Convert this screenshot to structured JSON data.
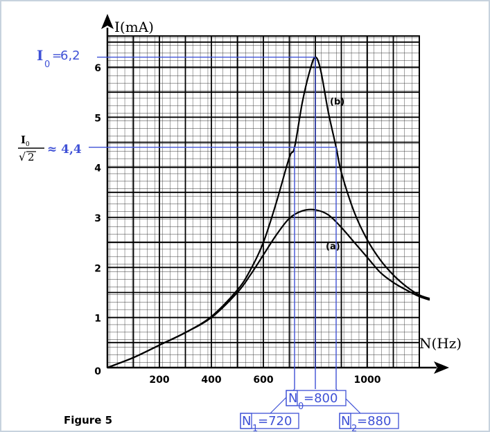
{
  "chart_data": {
    "type": "line",
    "title": "",
    "caption": "Figure 5",
    "xlabel": "N(Hz)",
    "ylabel": "I(mA)",
    "xlim": [
      0,
      1240
    ],
    "ylim": [
      0,
      6.6
    ],
    "x_ticks": [
      "200",
      "400",
      "600",
      "1000"
    ],
    "y_ticks": [
      "0",
      "1",
      "2",
      "3",
      "4",
      "5",
      "6"
    ],
    "grid": true,
    "series": [
      {
        "name": "(a)",
        "x": [
          0,
          100,
          200,
          300,
          400,
          500,
          550,
          600,
          650,
          700,
          750,
          800,
          850,
          900,
          950,
          1000,
          1050,
          1100,
          1150,
          1200,
          1240
        ],
        "y": [
          0,
          0.2,
          0.45,
          0.7,
          1.0,
          1.5,
          1.85,
          2.25,
          2.65,
          2.98,
          3.13,
          3.15,
          3.05,
          2.8,
          2.5,
          2.2,
          1.9,
          1.7,
          1.55,
          1.42,
          1.35
        ]
      },
      {
        "name": "(b)",
        "x": [
          0,
          100,
          200,
          300,
          400,
          500,
          550,
          600,
          650,
          700,
          720,
          750,
          780,
          800,
          820,
          850,
          880,
          900,
          950,
          1000,
          1050,
          1100,
          1150,
          1200,
          1240
        ],
        "y": [
          0,
          0.2,
          0.45,
          0.7,
          1.02,
          1.55,
          1.95,
          2.5,
          3.3,
          4.2,
          4.4,
          5.3,
          5.95,
          6.2,
          5.95,
          5.1,
          4.4,
          3.9,
          3.1,
          2.55,
          2.15,
          1.85,
          1.62,
          1.45,
          1.38
        ]
      }
    ],
    "annotations": {
      "i0": "6,2",
      "i0_over_sqrt2": "≈ 4,4",
      "i0_over_sqrt2_value": 4.4,
      "n0": "=800",
      "n1": "=720",
      "n2": "=880",
      "n0_value": 800,
      "n1_value": 720,
      "n2_value": 880
    }
  },
  "colors": {
    "annotation": "#3f51d6",
    "curve": "#000000",
    "grid": "#000000"
  }
}
